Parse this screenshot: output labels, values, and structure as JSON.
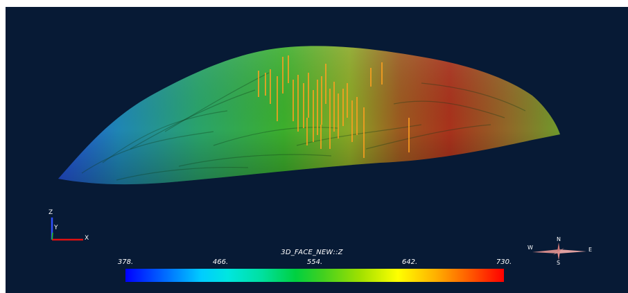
{
  "viewport": {
    "background": "#071a35",
    "surface_description_colors": {
      "low": "#1f5fd0",
      "mid": "#2faa2a",
      "high": "#b02a16",
      "drillholes": "#ffa020"
    }
  },
  "axes": {
    "z": "Z",
    "y": "Y",
    "x": "X"
  },
  "compass": {
    "n": "N",
    "s": "S",
    "e": "E",
    "w": "W"
  },
  "colorbar": {
    "title": "3D_FACE_NEW::Z",
    "ticks": [
      "378.",
      "466.",
      "554.",
      "642.",
      "730."
    ],
    "min": 378,
    "max": 730
  }
}
